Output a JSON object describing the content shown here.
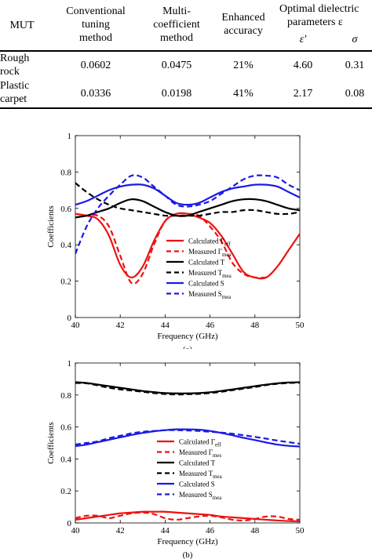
{
  "table": {
    "headers": {
      "mut": "MUT",
      "conventional": [
        "Conventional",
        "tuning",
        "method"
      ],
      "multi": [
        "Multi-",
        "coefficient",
        "method"
      ],
      "enhanced": [
        "Enhanced",
        "accuracy"
      ],
      "optimal": [
        "Optimal dielectric",
        "parameters ε"
      ],
      "eps_prime": "ε′",
      "sigma": "σ"
    },
    "rows": [
      {
        "mut": [
          "Rough",
          "rock"
        ],
        "conventional": "0.0602",
        "multi": "0.0475",
        "enhanced": "21%",
        "eps": "4.60",
        "sigma": "0.31"
      },
      {
        "mut": [
          "Plastic",
          "carpet"
        ],
        "conventional": "0.0336",
        "multi": "0.0198",
        "enhanced": "41%",
        "eps": "2.17",
        "sigma": "0.08"
      }
    ]
  },
  "chart_data": [
    {
      "type": "line",
      "caption": "(a)",
      "xlabel": "Frequency (GHz)",
      "ylabel": "Coefficients",
      "xlim": [
        40,
        50
      ],
      "ylim": [
        0,
        1
      ],
      "xticks": [
        "40",
        "42",
        "44",
        "46",
        "48",
        "50"
      ],
      "yticks": [
        "0",
        "0.2",
        "0.4",
        "0.6",
        "0.8",
        "1"
      ],
      "legend": {
        "position": "bottom-right",
        "entries": [
          {
            "base": "Calculated Γ",
            "sub": "eff",
            "color": "#ee1111",
            "dash": false
          },
          {
            "base": "Measured Γ",
            "sub": "mea",
            "color": "#ee1111",
            "dash": true
          },
          {
            "base": "Calculated T",
            "sub": "",
            "color": "#000000",
            "dash": false
          },
          {
            "base": "Measured T",
            "sub": "mea",
            "color": "#000000",
            "dash": true
          },
          {
            "base": "Calculated S",
            "sub": "",
            "color": "#1a1ae6",
            "dash": false
          },
          {
            "base": "Measured S",
            "sub": "mea",
            "color": "#1a1ae6",
            "dash": true
          }
        ]
      },
      "x": [
        40,
        40.5,
        41,
        41.5,
        42,
        42.5,
        43,
        43.5,
        44,
        44.5,
        45,
        45.5,
        46,
        46.5,
        47,
        47.5,
        48,
        48.5,
        49,
        49.5,
        50
      ],
      "series": [
        {
          "name": "Calculated Γeff",
          "color": "#ee1111",
          "dash": false,
          "values": [
            0.57,
            0.56,
            0.54,
            0.45,
            0.29,
            0.22,
            0.28,
            0.42,
            0.53,
            0.57,
            0.57,
            0.55,
            0.52,
            0.45,
            0.35,
            0.25,
            0.22,
            0.22,
            0.28,
            0.37,
            0.46
          ]
        },
        {
          "name": "Measured Γmea",
          "color": "#ee1111",
          "dash": true,
          "values": [
            0.55,
            0.56,
            0.56,
            0.5,
            0.34,
            0.19,
            0.24,
            0.4,
            0.53,
            0.57,
            0.57,
            0.56,
            0.5,
            0.42,
            0.3,
            0.24,
            0.22,
            0.22,
            null,
            null,
            null
          ]
        },
        {
          "name": "Calculated T",
          "color": "#000000",
          "dash": false,
          "values": [
            0.55,
            0.56,
            0.58,
            0.6,
            0.63,
            0.65,
            0.64,
            0.61,
            0.58,
            0.56,
            0.56,
            0.58,
            0.6,
            0.62,
            0.64,
            0.65,
            0.65,
            0.64,
            0.62,
            0.6,
            0.59
          ]
        },
        {
          "name": "Measured Tmea",
          "color": "#000000",
          "dash": true,
          "values": [
            0.74,
            0.69,
            0.65,
            0.62,
            0.6,
            0.59,
            0.58,
            0.57,
            0.56,
            0.56,
            0.56,
            0.56,
            0.57,
            0.58,
            0.58,
            0.59,
            0.59,
            0.58,
            0.57,
            0.57,
            0.58
          ]
        },
        {
          "name": "Calculated S",
          "color": "#1a1ae6",
          "dash": false,
          "values": [
            0.62,
            0.64,
            0.67,
            0.7,
            0.72,
            0.73,
            0.73,
            0.71,
            0.67,
            0.63,
            0.62,
            0.63,
            0.66,
            0.69,
            0.71,
            0.72,
            0.73,
            0.73,
            0.72,
            0.69,
            0.66
          ]
        },
        {
          "name": "Measured Smea",
          "color": "#1a1ae6",
          "dash": true,
          "values": [
            0.35,
            0.5,
            0.6,
            0.67,
            0.73,
            0.78,
            0.77,
            0.72,
            0.67,
            0.62,
            0.61,
            0.62,
            0.64,
            0.68,
            0.72,
            0.76,
            0.78,
            0.78,
            0.77,
            0.73,
            0.7
          ]
        }
      ]
    },
    {
      "type": "line",
      "caption": "(b)",
      "xlabel": "Frequency (GHz)",
      "ylabel": "Coefficients",
      "xlim": [
        40,
        50
      ],
      "ylim": [
        0,
        1
      ],
      "xticks": [
        "40",
        "42",
        "44",
        "46",
        "48",
        "50"
      ],
      "yticks": [
        "0",
        "0.2",
        "0.4",
        "0.6",
        "0.8",
        "1"
      ],
      "legend": {
        "position": "bottom-right",
        "entries": [
          {
            "base": "Calculated Γ",
            "sub": "eff",
            "color": "#ee1111",
            "dash": false
          },
          {
            "base": "Measured Γ",
            "sub": "mes",
            "color": "#ee1111",
            "dash": true
          },
          {
            "base": "Calculated T",
            "sub": "",
            "color": "#000000",
            "dash": false
          },
          {
            "base": "Measured T",
            "sub": "mea",
            "color": "#000000",
            "dash": true
          },
          {
            "base": "Calculated S",
            "sub": "",
            "color": "#1a1ae6",
            "dash": false
          },
          {
            "base": "Measured S",
            "sub": "mea",
            "color": "#1a1ae6",
            "dash": true
          }
        ]
      },
      "x": [
        40,
        40.5,
        41,
        41.5,
        42,
        42.5,
        43,
        43.5,
        44,
        44.5,
        45,
        45.5,
        46,
        46.5,
        47,
        47.5,
        48,
        48.5,
        49,
        49.5,
        50
      ],
      "series": [
        {
          "name": "Calculated Γeff",
          "color": "#ee1111",
          "dash": false,
          "values": [
            0.02,
            0.03,
            0.04,
            0.05,
            0.06,
            0.065,
            0.07,
            0.07,
            0.07,
            0.065,
            0.06,
            0.055,
            0.05,
            0.04,
            0.035,
            0.03,
            0.025,
            0.02,
            0.015,
            0.012,
            0.01
          ]
        },
        {
          "name": "Measured Γmes",
          "color": "#ee1111",
          "dash": true,
          "values": [
            0.03,
            0.045,
            0.045,
            0.03,
            0.045,
            0.06,
            0.065,
            0.055,
            0.03,
            0.02,
            0.03,
            0.04,
            0.045,
            0.035,
            0.02,
            0.015,
            0.025,
            0.04,
            0.04,
            0.025,
            0.02
          ]
        },
        {
          "name": "Calculated T",
          "color": "#000000",
          "dash": false,
          "values": [
            0.88,
            0.875,
            0.865,
            0.855,
            0.845,
            0.835,
            0.825,
            0.818,
            0.812,
            0.81,
            0.81,
            0.812,
            0.817,
            0.825,
            0.835,
            0.845,
            0.855,
            0.865,
            0.873,
            0.878,
            0.88
          ]
        },
        {
          "name": "Measured Tmea",
          "color": "#000000",
          "dash": true,
          "values": [
            0.875,
            0.873,
            0.86,
            0.845,
            0.835,
            0.828,
            0.82,
            0.812,
            0.806,
            0.803,
            0.805,
            0.807,
            0.812,
            0.82,
            0.83,
            0.84,
            0.85,
            0.862,
            0.87,
            0.875,
            0.876
          ]
        },
        {
          "name": "Calculated S",
          "color": "#1a1ae6",
          "dash": false,
          "values": [
            0.48,
            0.49,
            0.505,
            0.52,
            0.535,
            0.55,
            0.563,
            0.573,
            0.58,
            0.585,
            0.585,
            0.583,
            0.575,
            0.563,
            0.548,
            0.532,
            0.518,
            0.503,
            0.49,
            0.482,
            0.478
          ]
        },
        {
          "name": "Measured Smea",
          "color": "#1a1ae6",
          "dash": true,
          "values": [
            0.49,
            0.5,
            0.51,
            0.53,
            0.545,
            0.56,
            0.57,
            0.575,
            0.58,
            0.58,
            0.578,
            0.575,
            0.57,
            0.565,
            0.558,
            0.548,
            0.538,
            0.527,
            0.515,
            0.505,
            0.495
          ]
        }
      ]
    }
  ]
}
